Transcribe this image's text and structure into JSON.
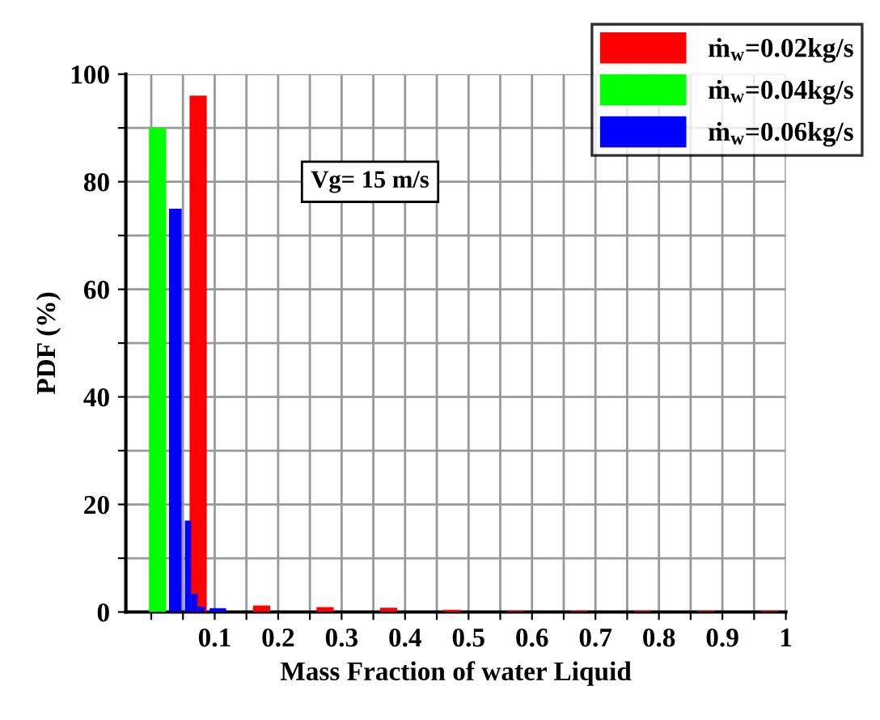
{
  "chart_data": {
    "type": "bar",
    "xlabel": "Mass Fraction of water Liquid",
    "ylabel": "PDF (%)",
    "annotations": [
      "Vg= 15 m/s"
    ],
    "series": [
      {
        "name": "ṁ$_{w}$=0.02kg/s",
        "color": "#ff0000",
        "x": [
          0.074,
          0.174,
          0.274,
          0.374,
          0.474,
          0.574,
          0.674,
          0.774,
          0.874,
          0.974
        ],
        "values": [
          96,
          1.2,
          0.9,
          0.8,
          0.4,
          0.2,
          0.2,
          0.2,
          0.2,
          0.2
        ]
      },
      {
        "name": "ṁ$_{w}$=0.04kg/s",
        "color": "#00ff00",
        "x": [
          0.01
        ],
        "values": [
          90
        ]
      },
      {
        "name": "ṁ$_{w}$=0.06kg/s",
        "color": "#0000ff",
        "x": [
          0.038,
          0.058,
          0.068,
          0.079,
          0.105
        ],
        "values": [
          75,
          17,
          3.4,
          1,
          0.7
        ]
      }
    ],
    "xlim": [
      -0.04,
      1.0
    ],
    "xticks": [
      {
        "value": 0,
        "label": null
      },
      {
        "value": 0.05,
        "label": null
      },
      0.1,
      {
        "value": 0.15,
        "label": null
      },
      0.2,
      {
        "value": 0.25,
        "label": null
      },
      0.3,
      {
        "value": 0.35,
        "label": null
      },
      0.4,
      {
        "value": 0.45,
        "label": null
      },
      0.5,
      {
        "value": 0.55,
        "label": null
      },
      0.6,
      {
        "value": 0.65,
        "label": null
      },
      0.7,
      {
        "value": 0.75,
        "label": null
      },
      0.8,
      {
        "value": 0.85,
        "label": null
      },
      0.9,
      {
        "value": 0.95,
        "label": null
      },
      1
    ],
    "ylim": [
      0,
      100
    ],
    "yticks": [
      0,
      {
        "value": 10,
        "label": null
      },
      20,
      {
        "value": 30,
        "label": null
      },
      40,
      {
        "value": 50,
        "label": null
      },
      60,
      {
        "value": 70,
        "label": null
      },
      80,
      {
        "value": 90,
        "label": null
      },
      100
    ],
    "grid": true,
    "legend": "top right"
  }
}
